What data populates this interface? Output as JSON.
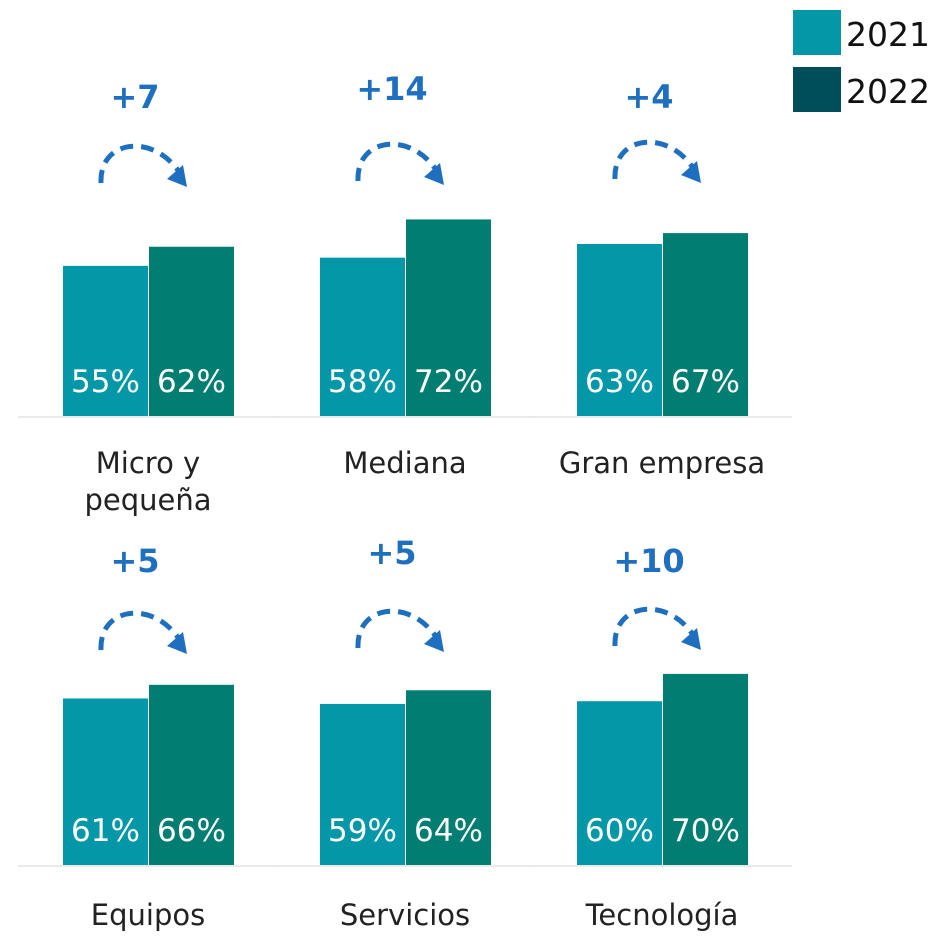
{
  "chart_data": {
    "type": "bar",
    "legend": [
      {
        "name": "2021",
        "color": "#0397a8"
      },
      {
        "name": "2022",
        "color": "#027d72"
      }
    ],
    "legend_position": "top-right",
    "legend_swatch_colors": [
      "#0397a8",
      "#004e5a"
    ],
    "ylim": [
      0,
      100
    ],
    "grid": false,
    "panels": [
      {
        "category": "Micro y\npequeña",
        "values": [
          55,
          62
        ],
        "labels": [
          "55%",
          "62%"
        ],
        "delta": "+7"
      },
      {
        "category": "Mediana",
        "values": [
          58,
          72
        ],
        "labels": [
          "58%",
          "72%"
        ],
        "delta": "+14"
      },
      {
        "category": "Gran empresa",
        "values": [
          63,
          67
        ],
        "labels": [
          "63%",
          "67%"
        ],
        "delta": "+4"
      },
      {
        "category": "Equipos",
        "values": [
          61,
          66
        ],
        "labels": [
          "61%",
          "66%"
        ],
        "delta": "+5"
      },
      {
        "category": "Servicios",
        "values": [
          59,
          64
        ],
        "labels": [
          "59%",
          "64%"
        ],
        "delta": "+5"
      },
      {
        "category": "Tecnología",
        "values": [
          60,
          70
        ],
        "labels": [
          "60%",
          "70%"
        ],
        "delta": "+10"
      }
    ]
  }
}
